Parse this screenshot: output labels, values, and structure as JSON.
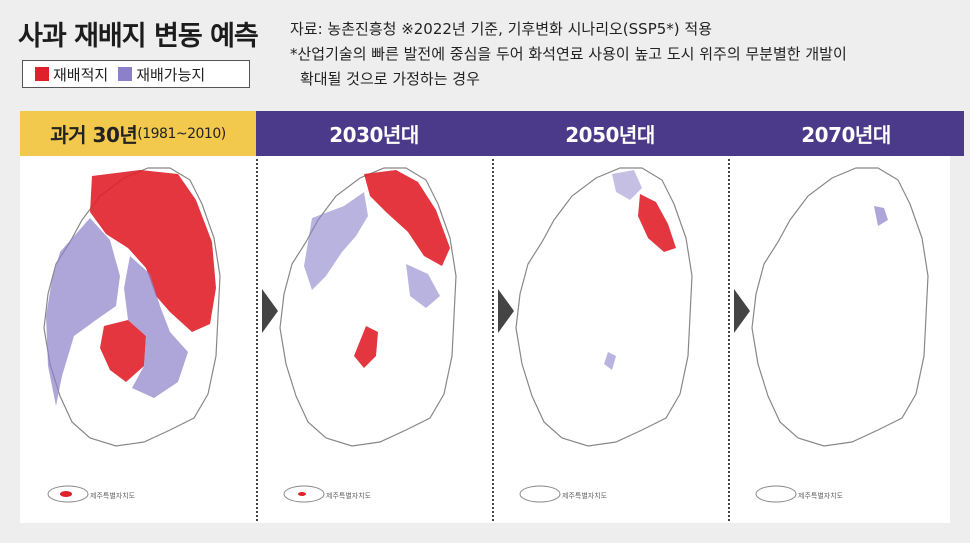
{
  "title": "사과 재배지 변동 예측",
  "legend": {
    "items": [
      {
        "label": "재배적지",
        "color": "#e0202a"
      },
      {
        "label": "재배가능지",
        "color": "#8b80c9"
      }
    ]
  },
  "source_note": "자료: 농촌진흥청 ※2022년 기준, 기후변화 시나리오(SSP5*) 적용",
  "footnote_line1": "*산업기술의 빠른 발전에 중심을 두어 화석연료 사용이 높고 도시 위주의 무분별한 개발이",
  "footnote_line2": "확대될 것으로 가정하는 경우",
  "panels": [
    {
      "label": "과거 30년",
      "sub": "(1981~2010)",
      "header_color": "#f2c94c"
    },
    {
      "label": "2030년대",
      "sub": "",
      "header_color": "#4b3a8a"
    },
    {
      "label": "2050년대",
      "sub": "",
      "header_color": "#4b3a8a"
    },
    {
      "label": "2070년대",
      "sub": "",
      "header_color": "#4b3a8a"
    }
  ],
  "jeju_label": "제주특별자치도",
  "colors": {
    "suitable": "#e0202a",
    "possible": "#8b80c9",
    "header": "#4b3a8a",
    "past_header": "#f2c94c"
  }
}
